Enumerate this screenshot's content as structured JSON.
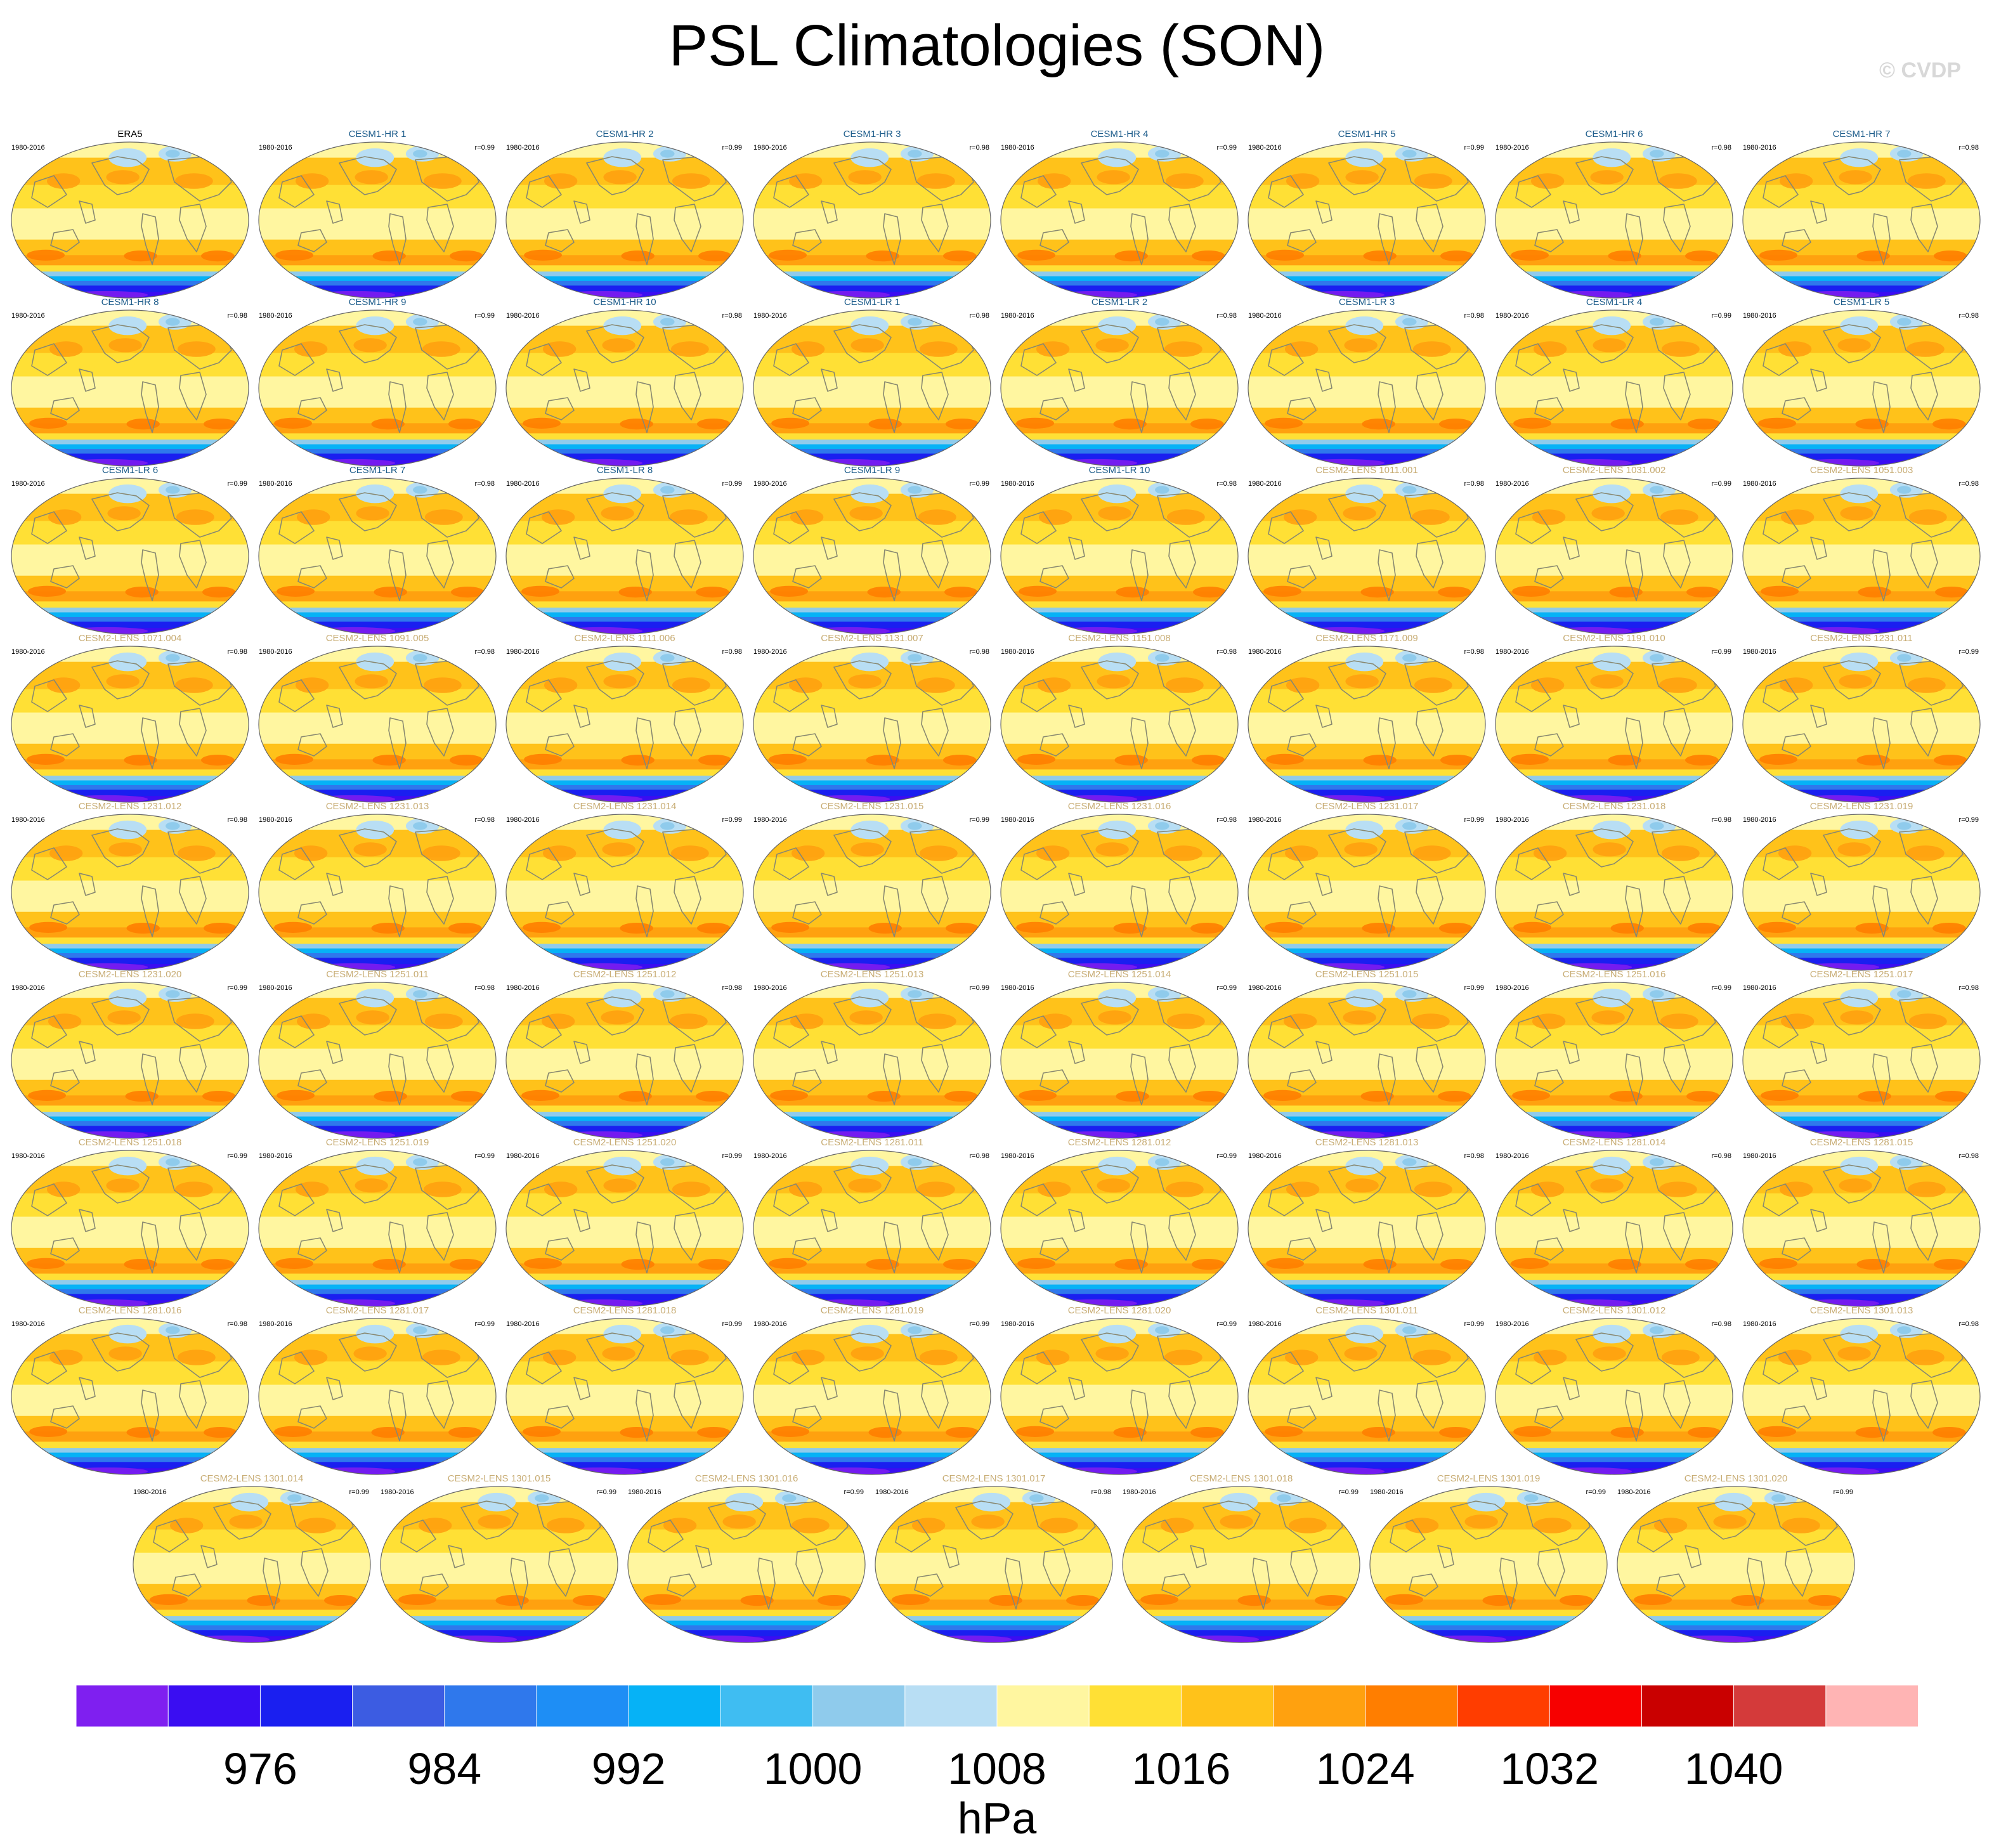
{
  "title": "PSL Climatologies (SON)",
  "watermark": "© CVDP",
  "chart_data": {
    "type": "heatmap",
    "title": "PSL Climatologies (SON)",
    "variable": "PSL",
    "season": "SON",
    "units": "hPa",
    "period": "1980-2016",
    "contour_levels": [
      972,
      976,
      980,
      984,
      988,
      992,
      996,
      1000,
      1004,
      1008,
      1012,
      1016,
      1020,
      1024,
      1028,
      1032,
      1036,
      1040,
      1044
    ],
    "colorbar_tick_labels": [
      "976",
      "984",
      "992",
      "1000",
      "1008",
      "1016",
      "1024",
      "1032",
      "1040"
    ],
    "colorbar_colors": [
      "#7f1ff0",
      "#3a0df2",
      "#1a1ff0",
      "#3c5ce2",
      "#2f78ec",
      "#1e8ef5",
      "#06b2f6",
      "#3fbdf2",
      "#8fcbec",
      "#b8def4",
      "#fff6a0",
      "#ffe035",
      "#ffc21a",
      "#ffa10f",
      "#ff7e00",
      "#ff3d00",
      "#f70000",
      "#c90000",
      "#d43a3a",
      "#ffb4b4"
    ],
    "panels": [
      {
        "name": "ERA5",
        "period": "1980-2016",
        "r": "",
        "group": "obs"
      },
      {
        "name": "CESM1-HR 1",
        "period": "1980-2016",
        "r": "r=0.99",
        "group": "cesm1"
      },
      {
        "name": "CESM1-HR 2",
        "period": "1980-2016",
        "r": "r=0.99",
        "group": "cesm1"
      },
      {
        "name": "CESM1-HR 3",
        "period": "1980-2016",
        "r": "r=0.98",
        "group": "cesm1"
      },
      {
        "name": "CESM1-HR 4",
        "period": "1980-2016",
        "r": "r=0.99",
        "group": "cesm1"
      },
      {
        "name": "CESM1-HR 5",
        "period": "1980-2016",
        "r": "r=0.99",
        "group": "cesm1"
      },
      {
        "name": "CESM1-HR 6",
        "period": "1980-2016",
        "r": "r=0.98",
        "group": "cesm1"
      },
      {
        "name": "CESM1-HR 7",
        "period": "1980-2016",
        "r": "r=0.98",
        "group": "cesm1"
      },
      {
        "name": "CESM1-HR 8",
        "period": "1980-2016",
        "r": "r=0.98",
        "group": "cesm1"
      },
      {
        "name": "CESM1-HR 9",
        "period": "1980-2016",
        "r": "r=0.99",
        "group": "cesm1"
      },
      {
        "name": "CESM1-HR 10",
        "period": "1980-2016",
        "r": "r=0.98",
        "group": "cesm1"
      },
      {
        "name": "CESM1-LR 1",
        "period": "1980-2016",
        "r": "r=0.98",
        "group": "cesm1"
      },
      {
        "name": "CESM1-LR 2",
        "period": "1980-2016",
        "r": "r=0.98",
        "group": "cesm1"
      },
      {
        "name": "CESM1-LR 3",
        "period": "1980-2016",
        "r": "r=0.98",
        "group": "cesm1"
      },
      {
        "name": "CESM1-LR 4",
        "period": "1980-2016",
        "r": "r=0.99",
        "group": "cesm1"
      },
      {
        "name": "CESM1-LR 5",
        "period": "1980-2016",
        "r": "r=0.98",
        "group": "cesm1"
      },
      {
        "name": "CESM1-LR 6",
        "period": "1980-2016",
        "r": "r=0.99",
        "group": "cesm1"
      },
      {
        "name": "CESM1-LR 7",
        "period": "1980-2016",
        "r": "r=0.98",
        "group": "cesm1"
      },
      {
        "name": "CESM1-LR 8",
        "period": "1980-2016",
        "r": "r=0.99",
        "group": "cesm1"
      },
      {
        "name": "CESM1-LR 9",
        "period": "1980-2016",
        "r": "r=0.99",
        "group": "cesm1"
      },
      {
        "name": "CESM1-LR 10",
        "period": "1980-2016",
        "r": "r=0.98",
        "group": "cesm1"
      },
      {
        "name": "CESM2-LENS 1011.001",
        "period": "1980-2016",
        "r": "r=0.98",
        "group": "cesm2"
      },
      {
        "name": "CESM2-LENS 1031.002",
        "period": "1980-2016",
        "r": "r=0.99",
        "group": "cesm2"
      },
      {
        "name": "CESM2-LENS 1051.003",
        "period": "1980-2016",
        "r": "r=0.98",
        "group": "cesm2"
      },
      {
        "name": "CESM2-LENS 1071.004",
        "period": "1980-2016",
        "r": "r=0.98",
        "group": "cesm2"
      },
      {
        "name": "CESM2-LENS 1091.005",
        "period": "1980-2016",
        "r": "r=0.98",
        "group": "cesm2"
      },
      {
        "name": "CESM2-LENS 1111.006",
        "period": "1980-2016",
        "r": "r=0.98",
        "group": "cesm2"
      },
      {
        "name": "CESM2-LENS 1131.007",
        "period": "1980-2016",
        "r": "r=0.98",
        "group": "cesm2"
      },
      {
        "name": "CESM2-LENS 1151.008",
        "period": "1980-2016",
        "r": "r=0.98",
        "group": "cesm2"
      },
      {
        "name": "CESM2-LENS 1171.009",
        "period": "1980-2016",
        "r": "r=0.98",
        "group": "cesm2"
      },
      {
        "name": "CESM2-LENS 1191.010",
        "period": "1980-2016",
        "r": "r=0.99",
        "group": "cesm2"
      },
      {
        "name": "CESM2-LENS 1231.011",
        "period": "1980-2016",
        "r": "r=0.99",
        "group": "cesm2"
      },
      {
        "name": "CESM2-LENS 1231.012",
        "period": "1980-2016",
        "r": "r=0.98",
        "group": "cesm2"
      },
      {
        "name": "CESM2-LENS 1231.013",
        "period": "1980-2016",
        "r": "r=0.98",
        "group": "cesm2"
      },
      {
        "name": "CESM2-LENS 1231.014",
        "period": "1980-2016",
        "r": "r=0.99",
        "group": "cesm2"
      },
      {
        "name": "CESM2-LENS 1231.015",
        "period": "1980-2016",
        "r": "r=0.99",
        "group": "cesm2"
      },
      {
        "name": "CESM2-LENS 1231.016",
        "period": "1980-2016",
        "r": "r=0.98",
        "group": "cesm2"
      },
      {
        "name": "CESM2-LENS 1231.017",
        "period": "1980-2016",
        "r": "r=0.99",
        "group": "cesm2"
      },
      {
        "name": "CESM2-LENS 1231.018",
        "period": "1980-2016",
        "r": "r=0.98",
        "group": "cesm2"
      },
      {
        "name": "CESM2-LENS 1231.019",
        "period": "1980-2016",
        "r": "r=0.99",
        "group": "cesm2"
      },
      {
        "name": "CESM2-LENS 1231.020",
        "period": "1980-2016",
        "r": "r=0.99",
        "group": "cesm2"
      },
      {
        "name": "CESM2-LENS 1251.011",
        "period": "1980-2016",
        "r": "r=0.98",
        "group": "cesm2"
      },
      {
        "name": "CESM2-LENS 1251.012",
        "period": "1980-2016",
        "r": "r=0.98",
        "group": "cesm2"
      },
      {
        "name": "CESM2-LENS 1251.013",
        "period": "1980-2016",
        "r": "r=0.99",
        "group": "cesm2"
      },
      {
        "name": "CESM2-LENS 1251.014",
        "period": "1980-2016",
        "r": "r=0.99",
        "group": "cesm2"
      },
      {
        "name": "CESM2-LENS 1251.015",
        "period": "1980-2016",
        "r": "r=0.99",
        "group": "cesm2"
      },
      {
        "name": "CESM2-LENS 1251.016",
        "period": "1980-2016",
        "r": "r=0.99",
        "group": "cesm2"
      },
      {
        "name": "CESM2-LENS 1251.017",
        "period": "1980-2016",
        "r": "r=0.98",
        "group": "cesm2"
      },
      {
        "name": "CESM2-LENS 1251.018",
        "period": "1980-2016",
        "r": "r=0.99",
        "group": "cesm2"
      },
      {
        "name": "CESM2-LENS 1251.019",
        "period": "1980-2016",
        "r": "r=0.99",
        "group": "cesm2"
      },
      {
        "name": "CESM2-LENS 1251.020",
        "period": "1980-2016",
        "r": "r=0.99",
        "group": "cesm2"
      },
      {
        "name": "CESM2-LENS 1281.011",
        "period": "1980-2016",
        "r": "r=0.98",
        "group": "cesm2"
      },
      {
        "name": "CESM2-LENS 1281.012",
        "period": "1980-2016",
        "r": "r=0.99",
        "group": "cesm2"
      },
      {
        "name": "CESM2-LENS 1281.013",
        "period": "1980-2016",
        "r": "r=0.98",
        "group": "cesm2"
      },
      {
        "name": "CESM2-LENS 1281.014",
        "period": "1980-2016",
        "r": "r=0.98",
        "group": "cesm2"
      },
      {
        "name": "CESM2-LENS 1281.015",
        "period": "1980-2016",
        "r": "r=0.98",
        "group": "cesm2"
      },
      {
        "name": "CESM2-LENS 1281.016",
        "period": "1980-2016",
        "r": "r=0.98",
        "group": "cesm2"
      },
      {
        "name": "CESM2-LENS 1281.017",
        "period": "1980-2016",
        "r": "r=0.99",
        "group": "cesm2"
      },
      {
        "name": "CESM2-LENS 1281.018",
        "period": "1980-2016",
        "r": "r=0.99",
        "group": "cesm2"
      },
      {
        "name": "CESM2-LENS 1281.019",
        "period": "1980-2016",
        "r": "r=0.99",
        "group": "cesm2"
      },
      {
        "name": "CESM2-LENS 1281.020",
        "period": "1980-2016",
        "r": "r=0.99",
        "group": "cesm2"
      },
      {
        "name": "CESM2-LENS 1301.011",
        "period": "1980-2016",
        "r": "r=0.99",
        "group": "cesm2"
      },
      {
        "name": "CESM2-LENS 1301.012",
        "period": "1980-2016",
        "r": "r=0.98",
        "group": "cesm2"
      },
      {
        "name": "CESM2-LENS 1301.013",
        "period": "1980-2016",
        "r": "r=0.98",
        "group": "cesm2"
      },
      {
        "name": "CESM2-LENS 1301.014",
        "period": "1980-2016",
        "r": "r=0.99",
        "group": "cesm2"
      },
      {
        "name": "CESM2-LENS 1301.015",
        "period": "1980-2016",
        "r": "r=0.99",
        "group": "cesm2"
      },
      {
        "name": "CESM2-LENS 1301.016",
        "period": "1980-2016",
        "r": "r=0.99",
        "group": "cesm2"
      },
      {
        "name": "CESM2-LENS 1301.017",
        "period": "1980-2016",
        "r": "r=0.98",
        "group": "cesm2"
      },
      {
        "name": "CESM2-LENS 1301.018",
        "period": "1980-2016",
        "r": "r=0.99",
        "group": "cesm2"
      },
      {
        "name": "CESM2-LENS 1301.019",
        "period": "1980-2016",
        "r": "r=0.99",
        "group": "cesm2"
      },
      {
        "name": "CESM2-LENS 1301.020",
        "period": "1980-2016",
        "r": "r=0.99",
        "group": "cesm2"
      }
    ]
  },
  "label_colors": {
    "obs": "#000000",
    "cesm1": "#1f5e8c",
    "cesm2": "#c8ad75"
  },
  "land_outline_color": "#888870"
}
